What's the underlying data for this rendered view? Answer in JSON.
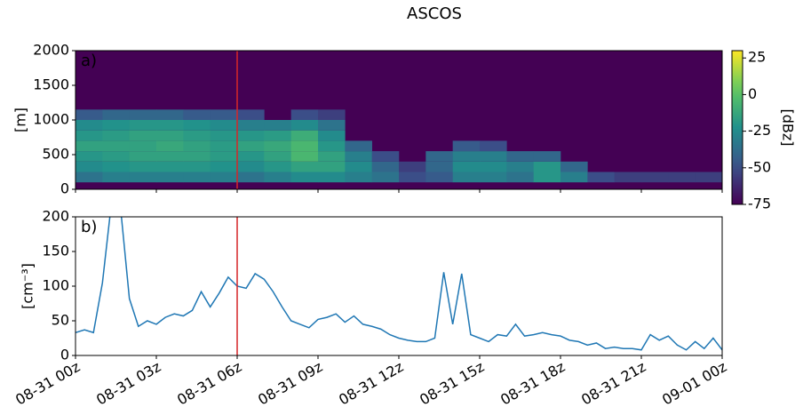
{
  "title": "ASCOS",
  "chart_data": [
    {
      "type": "heatmap",
      "annotation": "a)",
      "ylabel": "[m]",
      "ylim": [
        0,
        2000
      ],
      "yticks": [
        0,
        500,
        1000,
        1500,
        2000
      ],
      "xlim": [
        0,
        1440
      ],
      "x_edges": [
        0,
        60,
        120,
        180,
        240,
        300,
        360,
        420,
        480,
        540,
        600,
        660,
        720,
        780,
        840,
        900,
        960,
        1020,
        1080,
        1140,
        1200,
        1260,
        1320,
        1380,
        1440
      ],
      "y_edges": [
        100,
        250,
        400,
        550,
        700,
        850,
        1000,
        1150
      ],
      "z": [
        [
          -35,
          -25,
          -20,
          -15,
          -20,
          -25,
          -45
        ],
        [
          -30,
          -22,
          -18,
          -15,
          -18,
          -22,
          -40
        ],
        [
          -30,
          -20,
          -15,
          -15,
          -15,
          -20,
          -40
        ],
        [
          -30,
          -20,
          -15,
          -12,
          -15,
          -20,
          -40
        ],
        [
          -30,
          -20,
          -15,
          -15,
          -18,
          -22,
          -45
        ],
        [
          -30,
          -22,
          -18,
          -18,
          -20,
          -25,
          -45
        ],
        [
          -35,
          -25,
          -20,
          -15,
          -20,
          -30,
          -50
        ],
        [
          -30,
          -20,
          -15,
          -12,
          -18,
          -30,
          null
        ],
        [
          -25,
          -15,
          -5,
          -5,
          -10,
          -25,
          -50
        ],
        [
          -25,
          -15,
          -15,
          -20,
          -25,
          -35,
          -55
        ],
        [
          -30,
          -25,
          -30,
          -40,
          null,
          null,
          null
        ],
        [
          -35,
          -40,
          -50,
          null,
          null,
          null,
          null
        ],
        [
          -50,
          -55,
          null,
          null,
          null,
          null,
          null
        ],
        [
          -45,
          -40,
          -40,
          null,
          null,
          null,
          null
        ],
        [
          -30,
          -25,
          -30,
          -45,
          null,
          null,
          null
        ],
        [
          -30,
          -25,
          -30,
          -50,
          null,
          null,
          null
        ],
        [
          -35,
          -30,
          -40,
          null,
          null,
          null,
          null
        ],
        [
          -20,
          -20,
          -40,
          null,
          null,
          null,
          null
        ],
        [
          -30,
          -40,
          null,
          null,
          null,
          null,
          null
        ],
        [
          -50,
          null,
          null,
          null,
          null,
          null,
          null
        ],
        [
          -55,
          null,
          null,
          null,
          null,
          null,
          null
        ],
        [
          -55,
          null,
          null,
          null,
          null,
          null,
          null
        ],
        [
          -55,
          null,
          null,
          null,
          null,
          null,
          null
        ],
        [
          -55,
          null,
          null,
          null,
          null,
          null,
          null
        ]
      ],
      "clim": [
        -75,
        30
      ],
      "cticks": [
        -75,
        -50,
        -25,
        0,
        25
      ],
      "colorbar_label": "[dBz]",
      "colormap": "viridis",
      "vline": 360,
      "vline_color": "#d62728"
    },
    {
      "type": "line",
      "annotation": "b)",
      "ylabel": "[cm⁻³]",
      "ylim": [
        0,
        200
      ],
      "yticks": [
        0,
        50,
        100,
        150,
        200
      ],
      "xlim": [
        0,
        1440
      ],
      "xticks": [
        {
          "value": 0,
          "label": "08-31 00z"
        },
        {
          "value": 180,
          "label": "08-31 03z"
        },
        {
          "value": 360,
          "label": "08-31 06z"
        },
        {
          "value": 540,
          "label": "08-31 09z"
        },
        {
          "value": 720,
          "label": "08-31 12z"
        },
        {
          "value": 900,
          "label": "08-31 15z"
        },
        {
          "value": 1080,
          "label": "08-31 18z"
        },
        {
          "value": 1260,
          "label": "08-31 21z"
        },
        {
          "value": 1440,
          "label": "09-01 00z"
        }
      ],
      "x": [
        0,
        20,
        40,
        60,
        80,
        100,
        120,
        140,
        160,
        180,
        200,
        220,
        240,
        260,
        280,
        300,
        320,
        340,
        360,
        380,
        400,
        420,
        440,
        460,
        480,
        500,
        520,
        540,
        560,
        580,
        600,
        620,
        640,
        660,
        680,
        700,
        720,
        740,
        760,
        780,
        800,
        820,
        840,
        860,
        880,
        900,
        920,
        940,
        960,
        980,
        1000,
        1020,
        1040,
        1060,
        1080,
        1100,
        1120,
        1140,
        1160,
        1180,
        1200,
        1220,
        1240,
        1260,
        1280,
        1300,
        1320,
        1340,
        1360,
        1380,
        1400,
        1420,
        1440
      ],
      "series": [
        {
          "color": "#1f77b4",
          "values": [
            33,
            37,
            33,
            105,
            220,
            215,
            82,
            42,
            50,
            45,
            55,
            60,
            57,
            65,
            92,
            70,
            90,
            113,
            100,
            97,
            118,
            110,
            92,
            70,
            50,
            45,
            40,
            52,
            55,
            60,
            48,
            57,
            45,
            42,
            38,
            30,
            25,
            22,
            20,
            20,
            25,
            120,
            45,
            118,
            30,
            25,
            20,
            30,
            28,
            45,
            28,
            30,
            33,
            30,
            28,
            22,
            20,
            15,
            18,
            10,
            12,
            10,
            10,
            8,
            30,
            22,
            28,
            15,
            8,
            20,
            10,
            25,
            8
          ]
        }
      ],
      "vline": 360,
      "vline_color": "#d62728"
    }
  ]
}
